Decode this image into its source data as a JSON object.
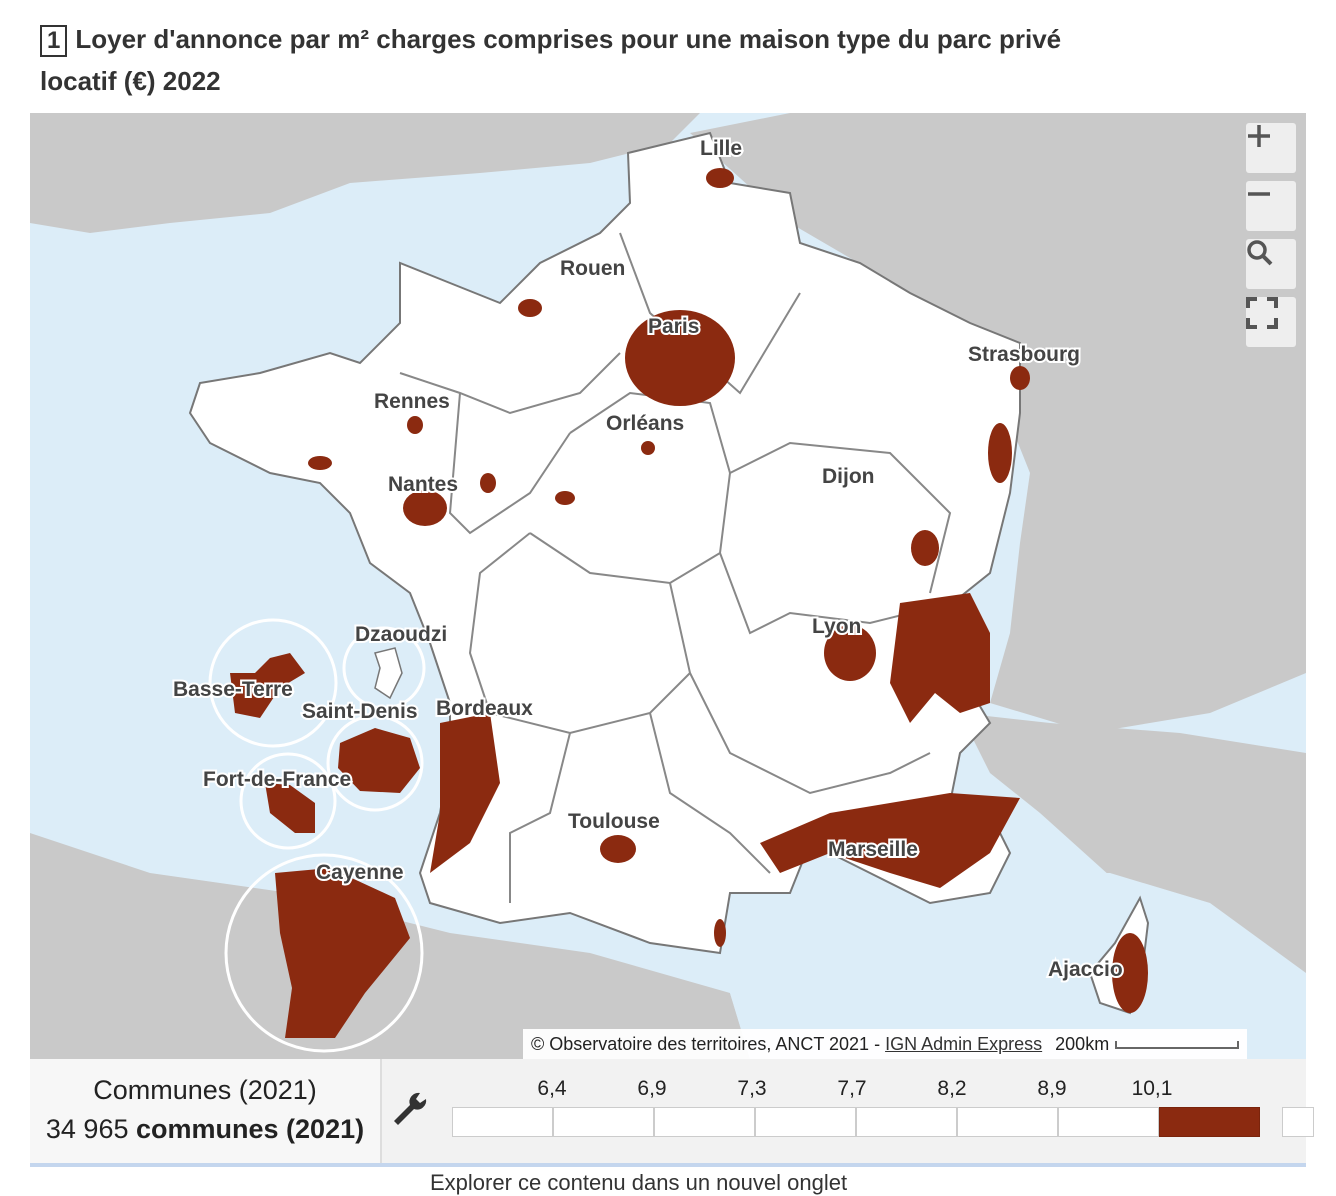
{
  "title": {
    "number": "1",
    "text": "Loyer d'annonce par m² charges comprises pour une maison type du parc privé locatif (€) 2022"
  },
  "map": {
    "cities": [
      "Lille",
      "Rouen",
      "Paris",
      "Strasbourg",
      "Rennes",
      "Orléans",
      "Nantes",
      "Dijon",
      "Lyon",
      "Dzaoudzi",
      "Basse-Terre",
      "Saint-Denis",
      "Bordeaux",
      "Fort-de-France",
      "Toulouse",
      "Marseille",
      "Cayenne",
      "Ajaccio"
    ],
    "attribution": "© Observatoire des territoires, ANCT 2021 - ",
    "attribution_link": "IGN Admin Express",
    "scale": "200km",
    "controls": {
      "zoom_in": "+",
      "zoom_out": "−"
    },
    "colors": {
      "sea": "#dcedf8",
      "land_foreign": "#c9c9c9",
      "france": "#ffffff",
      "high_rent": "#8b2a10",
      "borders": "#777777"
    }
  },
  "legend": {
    "unit_label": "Communes (2021)",
    "count_number": "34 965",
    "count_label": "communes (2021)",
    "ticks": [
      "6,4",
      "6,9",
      "7,3",
      "7,7",
      "8,2",
      "8,9",
      "10,1"
    ],
    "highlighted_class": 8
  },
  "footer": {
    "explore_link": "Explorer ce contenu dans un nouvel onglet"
  }
}
